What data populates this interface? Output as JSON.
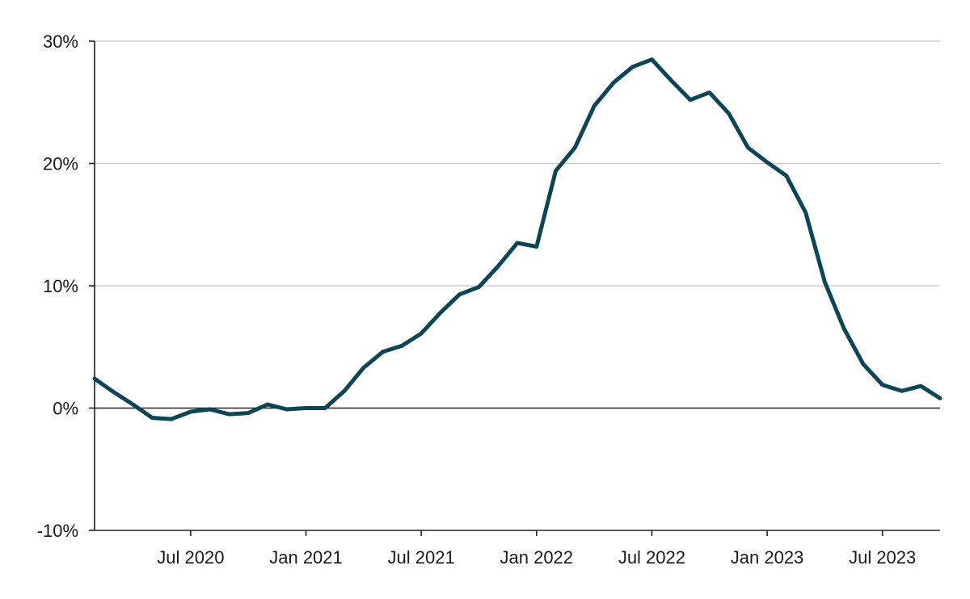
{
  "chart_data": {
    "type": "line",
    "title": "",
    "xlabel": "",
    "ylabel": "",
    "ylim": [
      -10,
      30
    ],
    "y_ticks": [
      -10,
      0,
      10,
      20,
      30
    ],
    "y_tick_labels": [
      "-10%",
      "0%",
      "10%",
      "20%",
      "30%"
    ],
    "x_range": [
      "2020-02",
      "2023-10"
    ],
    "x_ticks": [
      "2020-07",
      "2021-01",
      "2021-07",
      "2022-01",
      "2022-07",
      "2023-01",
      "2023-07"
    ],
    "x_tick_labels": [
      "Jul 2020",
      "Jan 2021",
      "Jul 2021",
      "Jan 2022",
      "Jul 2022",
      "Jan 2023",
      "Jul 2023"
    ],
    "grid": "horizontal",
    "line_color": "#0d4456",
    "series": [
      {
        "x": [
          "2020-02",
          "2020-03",
          "2020-04",
          "2020-05",
          "2020-06",
          "2020-07",
          "2020-08",
          "2020-09",
          "2020-10",
          "2020-11",
          "2020-12",
          "2021-01",
          "2021-02",
          "2021-03",
          "2021-04",
          "2021-05",
          "2021-06",
          "2021-07",
          "2021-08",
          "2021-09",
          "2021-10",
          "2021-11",
          "2021-12",
          "2022-01",
          "2022-02",
          "2022-03",
          "2022-04",
          "2022-05",
          "2022-06",
          "2022-07",
          "2022-08",
          "2022-09",
          "2022-10",
          "2022-11",
          "2022-12",
          "2023-01",
          "2023-02",
          "2023-03",
          "2023-04",
          "2023-05",
          "2023-06",
          "2023-07",
          "2023-08",
          "2023-09",
          "2023-10"
        ],
        "values": [
          2.4,
          1.3,
          0.3,
          -0.8,
          -0.9,
          -0.3,
          -0.1,
          -0.5,
          -0.4,
          0.3,
          -0.1,
          0.0,
          0.0,
          1.4,
          3.3,
          4.6,
          5.1,
          6.1,
          7.8,
          9.3,
          9.9,
          11.6,
          13.5,
          13.2,
          19.4,
          21.3,
          24.7,
          26.6,
          27.9,
          28.5,
          26.8,
          25.2,
          25.8,
          24.1,
          21.3,
          20.1,
          19.0,
          16.0,
          10.3,
          6.5,
          3.6,
          1.9,
          1.4,
          1.8,
          0.8
        ]
      }
    ]
  }
}
